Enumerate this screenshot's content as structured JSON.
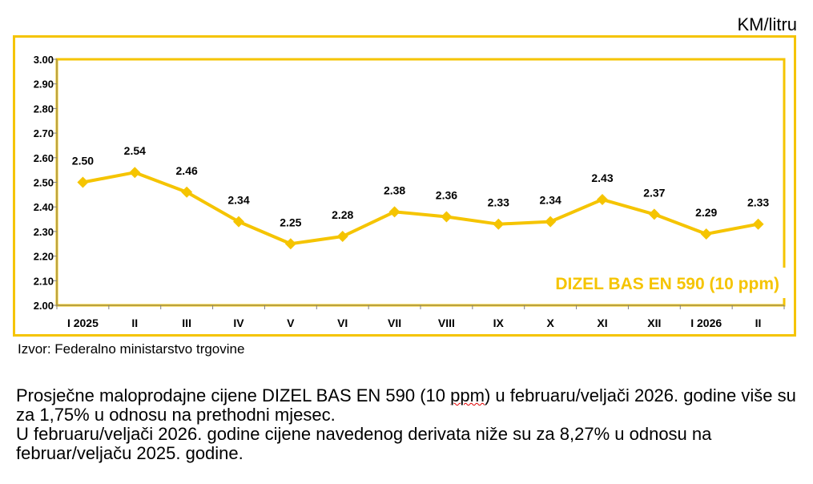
{
  "unit_label": "KM/litru",
  "source": "Izvor: Federalno ministarstvo trgovine",
  "paragraph1": {
    "before": "Prosječne maloprodajne cijene DIZEL BAS EN 590 (10 ",
    "squiggle": "ppm",
    "after": ") u februaru/veljači 2026. godine više su za 1,75% u odnosu na prethodni mjesec."
  },
  "paragraph2": "U februaru/veljači 2026. godine cijene navedenog derivata niže su za 8,27% u odnosu na februar/veljaču 2025. godine.",
  "colors": {
    "series": "#f5c400",
    "frame": "#f5c400"
  },
  "chart_data": {
    "type": "line",
    "categories": [
      "I 2025",
      "II",
      "III",
      "IV",
      "V",
      "VI",
      "VII",
      "VIII",
      "IX",
      "X",
      "XI",
      "XII",
      "I 2026",
      "II"
    ],
    "series": [
      {
        "name": "DIZEL BAS EN 590 (10 ppm)",
        "values": [
          2.5,
          2.54,
          2.46,
          2.34,
          2.25,
          2.28,
          2.38,
          2.36,
          2.33,
          2.34,
          2.43,
          2.37,
          2.29,
          2.33
        ],
        "labels": [
          "2.50",
          "2.54",
          "2.46",
          "2.34",
          "2.25",
          "2.28",
          "2.38",
          "2.36",
          "2.33",
          "2.34",
          "2.43",
          "2.37",
          "2.29",
          "2.33"
        ]
      }
    ],
    "ylim": [
      2.0,
      3.0
    ],
    "yticks": [
      "2.00",
      "2.10",
      "2.20",
      "2.30",
      "2.40",
      "2.50",
      "2.60",
      "2.70",
      "2.80",
      "2.90",
      "3.00"
    ],
    "grid": false,
    "legend": "bottom-right"
  }
}
